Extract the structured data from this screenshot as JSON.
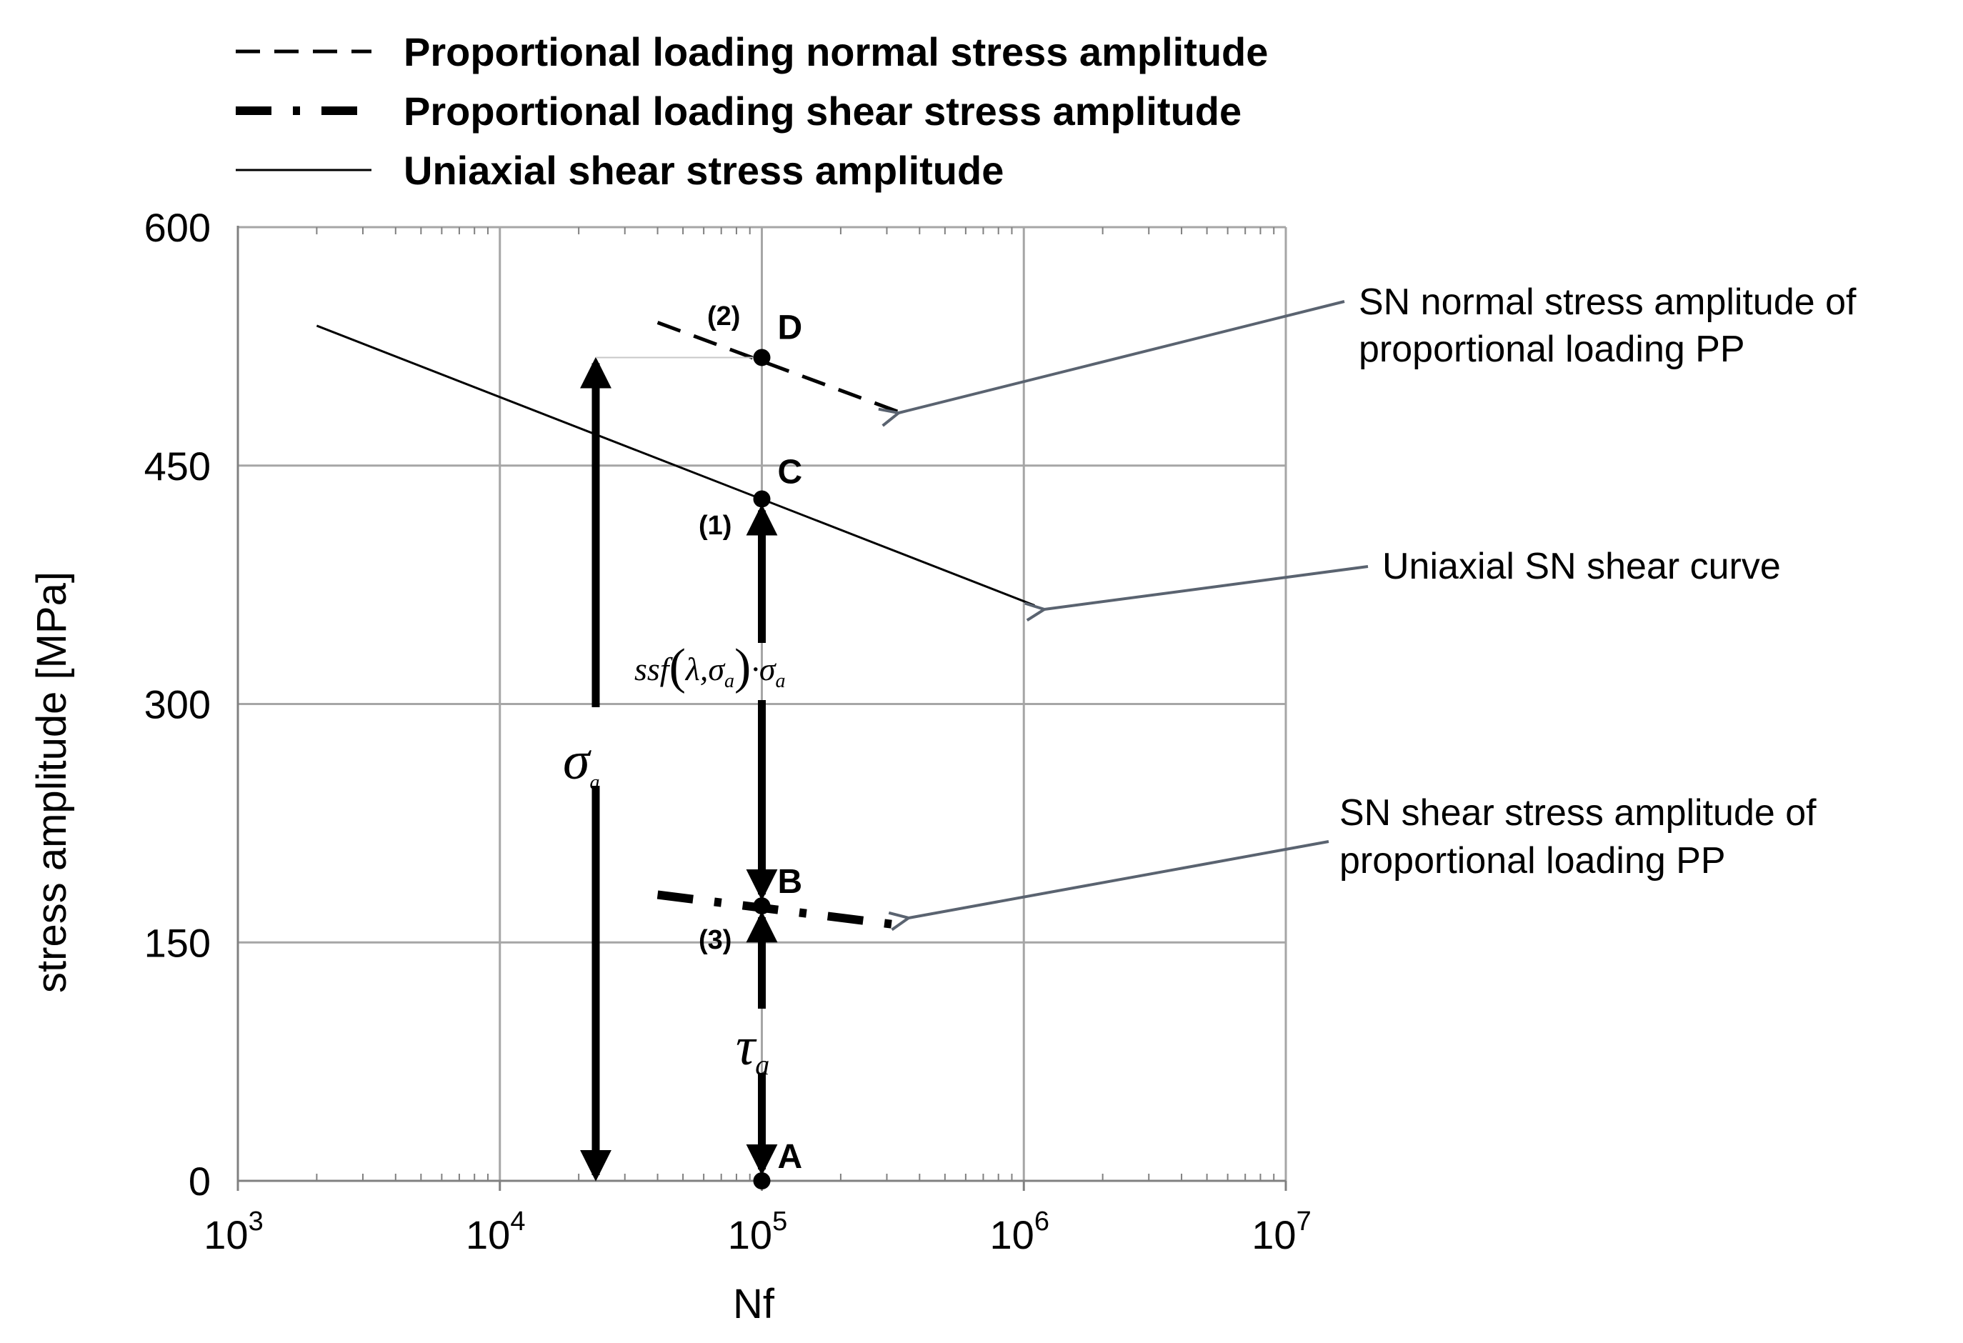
{
  "chart_data": {
    "type": "line",
    "x_scale": "log",
    "xlabel": "Nf",
    "ylabel": "stress amplitude [MPa]",
    "xlim": [
      1000,
      10000000
    ],
    "ylim": [
      0,
      600
    ],
    "x_ticks": [
      {
        "base": "10",
        "exp": "3",
        "value": 1000
      },
      {
        "base": "10",
        "exp": "4",
        "value": 10000
      },
      {
        "base": "10",
        "exp": "5",
        "value": 100000
      },
      {
        "base": "10",
        "exp": "6",
        "value": 1000000
      },
      {
        "base": "10",
        "exp": "7",
        "value": 10000000
      }
    ],
    "y_ticks": [
      {
        "label": "0",
        "value": 0
      },
      {
        "label": "150",
        "value": 150
      },
      {
        "label": "300",
        "value": 300
      },
      {
        "label": "450",
        "value": 450
      },
      {
        "label": "600",
        "value": 600
      }
    ],
    "grid": true,
    "legend_position": "top",
    "series": [
      {
        "name": "Proportional loading normal stress amplitude",
        "style": "dashed",
        "points": [
          [
            40000,
            540
          ],
          [
            330000,
            484
          ]
        ]
      },
      {
        "name": "Proportional loading shear stress amplitude",
        "style": "dash-dot-thick",
        "points": [
          [
            40000,
            180
          ],
          [
            330000,
            161
          ]
        ]
      },
      {
        "name": "Uniaxial shear stress amplitude",
        "style": "solid",
        "points": [
          [
            2000,
            538
          ],
          [
            1100000,
            362
          ]
        ]
      }
    ],
    "points": [
      {
        "label": "A",
        "x": 100000,
        "y": 0
      },
      {
        "label": "B",
        "x": 100000,
        "y": 173
      },
      {
        "label": "C",
        "x": 100000,
        "y": 429
      },
      {
        "label": "D",
        "x": 100000,
        "y": 518
      }
    ],
    "step_labels": [
      "(1)",
      "(2)",
      "(3)"
    ],
    "formulas": {
      "sigma_symbol": "σ",
      "sigma_sub": "a",
      "tau_symbol": "τ",
      "tau_sub": "a",
      "ssf_part1": "ssf",
      "ssf_lambda": "λ,σ",
      "ssf_sub1": "a",
      "ssf_dot_sigma": "·σ",
      "ssf_sub2": "a"
    },
    "annotations": {
      "normal_pp": [
        "SN normal stress amplitude of",
        "proportional loading PP"
      ],
      "uniaxial": "Uniaxial SN shear curve",
      "shear_pp": [
        "SN shear stress amplitude of",
        "proportional loading PP"
      ]
    },
    "colors": {
      "grid": "#a6a6a6",
      "axis": "#808080",
      "line": "#000000",
      "annotation_arrow": "#5a6370"
    }
  }
}
